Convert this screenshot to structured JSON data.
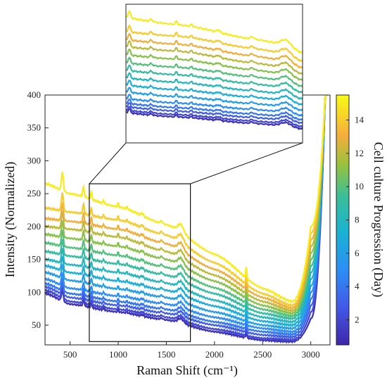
{
  "chart_data": {
    "type": "line",
    "title": "",
    "xlabel": "Raman Shift (cm⁻¹)",
    "ylabel": "Intensity (Normalized)",
    "xlim": [
      240,
      3200
    ],
    "ylim": [
      20,
      400
    ],
    "xticks": [
      "500",
      "1000",
      "1500",
      "2000",
      "2500",
      "3000"
    ],
    "yticks": [
      "50",
      "100",
      "150",
      "200",
      "250",
      "300",
      "350",
      "400"
    ],
    "grid": false,
    "colorbar": {
      "label": "Cell culture Progression (Day)",
      "range": [
        0.5,
        15.5
      ],
      "ticks": [
        "2",
        "4",
        "6",
        "8",
        "10",
        "12",
        "14"
      ],
      "colormap": "parula"
    },
    "inset": {
      "x_range": [
        700,
        1750
      ],
      "y_range": [
        25,
        265
      ],
      "position": "top"
    },
    "series": [
      {
        "day": 1,
        "values": {
          "250": 98,
          "500": 82,
          "1000": 70,
          "1500": 58,
          "2000": 40,
          "2500": 27,
          "2800": 25,
          "3000": 60,
          "3150": 400
        }
      },
      {
        "day": 2,
        "values": {
          "250": 103,
          "500": 86,
          "1000": 74,
          "1500": 62,
          "2000": 44,
          "2500": 30,
          "2800": 28,
          "3000": 70,
          "3150": 400
        }
      },
      {
        "day": 3,
        "values": {
          "250": 108,
          "500": 92,
          "1000": 80,
          "1500": 68,
          "2000": 50,
          "2500": 35,
          "2800": 32,
          "3000": 80,
          "3150": 400
        }
      },
      {
        "day": 4,
        "values": {
          "250": 113,
          "500": 98,
          "1000": 86,
          "1500": 74,
          "2000": 55,
          "2500": 40,
          "2800": 36,
          "3000": 90,
          "3150": 400
        }
      },
      {
        "day": 5,
        "values": {
          "250": 120,
          "500": 106,
          "1000": 94,
          "1500": 82,
          "2000": 62,
          "2500": 45,
          "2800": 40,
          "3000": 100,
          "3150": 400
        }
      },
      {
        "day": 6,
        "values": {
          "250": 130,
          "500": 118,
          "1000": 105,
          "1500": 92,
          "2000": 70,
          "2500": 50,
          "2800": 45,
          "3000": 110,
          "3150": 400
        }
      },
      {
        "day": 7,
        "values": {
          "250": 140,
          "500": 130,
          "1000": 117,
          "1500": 103,
          "2000": 79,
          "2500": 56,
          "2800": 50,
          "3000": 120,
          "3150": 400
        }
      },
      {
        "day": 8,
        "values": {
          "250": 150,
          "500": 142,
          "1000": 130,
          "1500": 114,
          "2000": 88,
          "2500": 62,
          "2800": 55,
          "3000": 130,
          "3150": 400
        }
      },
      {
        "day": 9,
        "values": {
          "250": 162,
          "500": 155,
          "1000": 143,
          "1500": 126,
          "2000": 98,
          "2500": 68,
          "2800": 60,
          "3000": 140,
          "3150": 400
        }
      },
      {
        "day": 10,
        "values": {
          "250": 175,
          "500": 168,
          "1000": 156,
          "1500": 138,
          "2000": 107,
          "2500": 74,
          "2800": 64,
          "3000": 150,
          "3150": 400
        }
      },
      {
        "day": 11,
        "values": {
          "250": 188,
          "500": 182,
          "1000": 170,
          "1500": 150,
          "2000": 117,
          "2500": 80,
          "2800": 68,
          "3000": 160,
          "3150": 400
        }
      },
      {
        "day": 12,
        "values": {
          "250": 200,
          "500": 196,
          "1000": 184,
          "1500": 162,
          "2000": 126,
          "2500": 86,
          "2800": 72,
          "3000": 170,
          "3150": 400
        }
      },
      {
        "day": 13,
        "values": {
          "250": 212,
          "500": 208,
          "1000": 196,
          "1500": 174,
          "2000": 135,
          "2500": 92,
          "2800": 76,
          "3000": 180,
          "3150": 400
        }
      },
      {
        "day": 14,
        "values": {
          "250": 228,
          "500": 222,
          "1000": 210,
          "1500": 187,
          "2000": 145,
          "2500": 98,
          "2800": 80,
          "3000": 190,
          "3150": 400
        }
      },
      {
        "day": 15,
        "values": {
          "250": 265,
          "500": 250,
          "1000": 230,
          "1500": 203,
          "2000": 158,
          "2500": 106,
          "2800": 86,
          "3000": 200,
          "3150": 400
        }
      }
    ]
  }
}
